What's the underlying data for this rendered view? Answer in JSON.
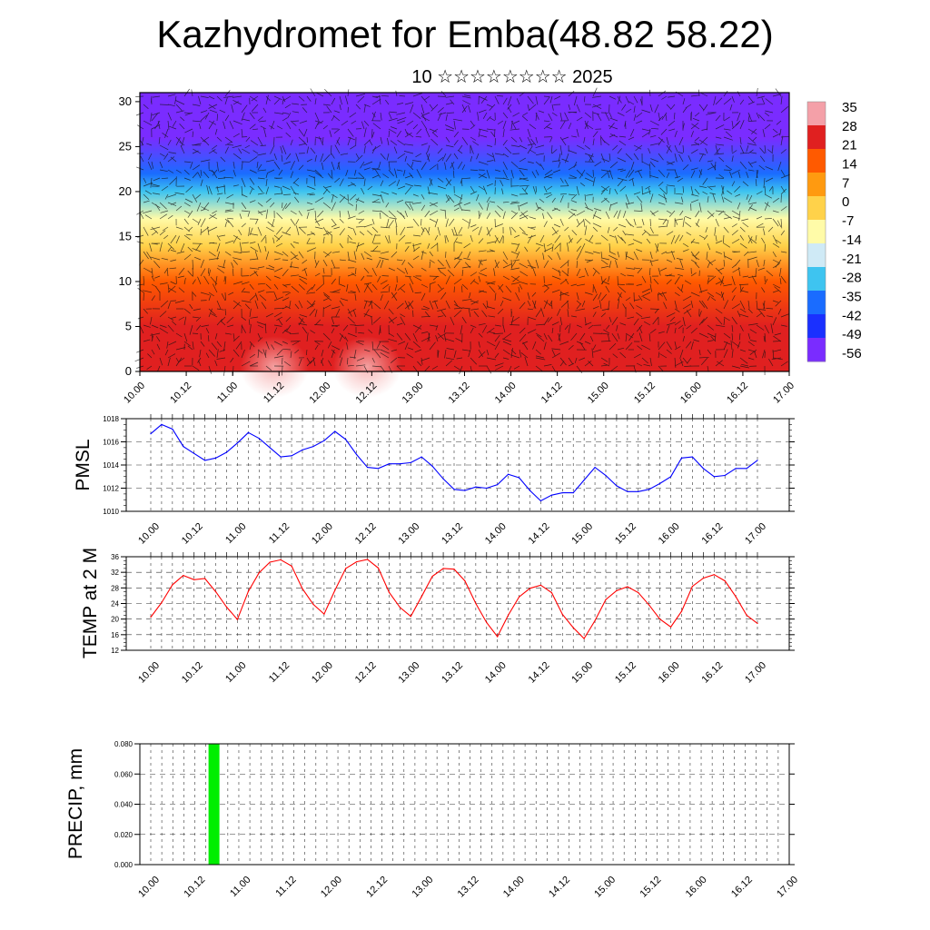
{
  "header": {
    "title": "Kazhydromet for Emba(48.82 58.22)",
    "date_line": "10 ☆☆☆☆☆☆☆☆ 2025"
  },
  "chart_data": [
    {
      "type": "heatmap",
      "title": "",
      "x_tick_labels": [
        "10.00",
        "10.12",
        "11.00",
        "11.12",
        "12.00",
        "12.12",
        "13.00",
        "13.12",
        "14.00",
        "14.12",
        "15.00",
        "15.12",
        "16.00",
        "16.12",
        "17.00"
      ],
      "y_ticks": [
        0,
        5,
        10,
        15,
        20,
        25,
        30
      ],
      "ylim": [
        0,
        31
      ],
      "colorbar_labels": [
        "35",
        "28",
        "21",
        "14",
        "7",
        "0",
        "-7",
        "-14",
        "-21",
        "-28",
        "-35",
        "-42",
        "-49",
        "-56"
      ],
      "colorbar_colors": [
        "#f4a0a8",
        "#e02020",
        "#ff5a00",
        "#ff9a10",
        "#ffd24a",
        "#fffba8",
        "#cfeaf6",
        "#3ec4f0",
        "#1a6cff",
        "#1a30ff",
        "#7a2cff"
      ],
      "vertical_profile": [
        {
          "level": 0,
          "value": 30
        },
        {
          "level": 5,
          "value": 25
        },
        {
          "level": 10,
          "value": 14
        },
        {
          "level": 14,
          "value": 2
        },
        {
          "level": 17,
          "value": -12
        },
        {
          "level": 20,
          "value": -25
        },
        {
          "level": 22,
          "value": -42
        },
        {
          "level": 26,
          "value": -52
        },
        {
          "level": 31,
          "value": -58
        }
      ],
      "overlay": "wind barbs"
    },
    {
      "type": "line",
      "ylabel": "PMSL",
      "ylim": [
        1010,
        1018
      ],
      "y_ticks": [
        1010,
        1012,
        1014,
        1016,
        1018
      ],
      "x_tick_labels": [
        "10.00",
        "10.12",
        "11.00",
        "11.12",
        "12.00",
        "12.12",
        "13.00",
        "13.12",
        "14.00",
        "14.12",
        "15.00",
        "15.12",
        "16.00",
        "16.12",
        "17.00"
      ],
      "grid": true,
      "series": [
        {
          "color": "#0000ff",
          "values": [
            1016.7,
            1017.5,
            1017.1,
            1015.6,
            1015.0,
            1014.4,
            1014.6,
            1015.1,
            1015.9,
            1016.8,
            1016.3,
            1015.5,
            1014.7,
            1014.8,
            1015.3,
            1015.6,
            1016.1,
            1016.9,
            1016.2,
            1014.9,
            1013.8,
            1013.7,
            1014.1,
            1014.1,
            1014.2,
            1014.7,
            1013.9,
            1012.8,
            1011.9,
            1011.8,
            1012.1,
            1012.0,
            1012.3,
            1013.2,
            1012.9,
            1011.8,
            1010.9,
            1011.4,
            1011.6,
            1011.6,
            1012.7,
            1013.8,
            1013.1,
            1012.2,
            1011.7,
            1011.7,
            1011.9,
            1012.4,
            1013.0,
            1014.6,
            1014.7,
            1013.7,
            1013.0,
            1013.1,
            1013.7,
            1013.7,
            1014.4
          ]
        }
      ]
    },
    {
      "type": "line",
      "ylabel": "TEMP at 2 M",
      "ylim": [
        12,
        36
      ],
      "y_ticks": [
        12,
        16,
        20,
        24,
        28,
        32,
        36
      ],
      "x_tick_labels": [
        "10.00",
        "10.12",
        "11.00",
        "11.12",
        "12.00",
        "12.12",
        "13.00",
        "13.12",
        "14.00",
        "14.12",
        "15.00",
        "15.12",
        "16.00",
        "16.12",
        "17.00"
      ],
      "grid": true,
      "series": [
        {
          "color": "#ff0000",
          "values": [
            20.5,
            24.2,
            28.8,
            31.2,
            30.1,
            30.4,
            27.0,
            23.1,
            19.9,
            27.1,
            31.9,
            34.6,
            35.2,
            33.6,
            27.8,
            23.8,
            21.3,
            27.4,
            33.0,
            34.7,
            35.3,
            33.1,
            26.9,
            23.0,
            20.7,
            25.8,
            31.0,
            33.0,
            32.8,
            29.8,
            24.0,
            19.1,
            15.5,
            21.0,
            25.7,
            27.9,
            28.7,
            26.8,
            21.2,
            17.8,
            15.0,
            19.6,
            25.0,
            27.3,
            28.3,
            26.8,
            23.6,
            20.0,
            18.0,
            22.0,
            28.4,
            30.5,
            31.4,
            29.8,
            25.8,
            21.0,
            18.9
          ]
        }
      ]
    },
    {
      "type": "bar",
      "ylabel": "PRECIP, mm",
      "ylim": [
        0,
        0.08
      ],
      "y_tick_labels": [
        "0.000",
        "0.020",
        "0.040",
        "0.060",
        "0.080"
      ],
      "x_tick_labels": [
        "10.00",
        "10.12",
        "11.00",
        "11.12",
        "12.00",
        "12.12",
        "13.00",
        "13.12",
        "14.00",
        "14.12",
        "15.00",
        "15.12",
        "16.00",
        "16.12",
        "17.00"
      ],
      "grid": true,
      "bars": [
        {
          "x_step": 5,
          "value": 0.08
        }
      ],
      "bar_color": "#00ee00"
    }
  ]
}
